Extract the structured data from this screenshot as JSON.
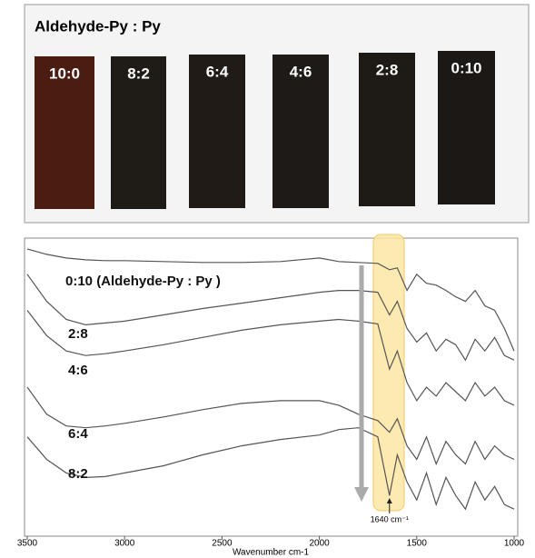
{
  "panel": {
    "title": "Aldehyde-Py : Py",
    "swatches": [
      {
        "label": "10:0",
        "color": "#4b1d12"
      },
      {
        "label": "8:2",
        "color": "#1f1b17"
      },
      {
        "label": "6:4",
        "color": "#201b16"
      },
      {
        "label": "4:6",
        "color": "#1d1a17"
      },
      {
        "label": "2:8",
        "color": "#1e1a15"
      },
      {
        "label": "0:10",
        "color": "#1b1815"
      }
    ]
  },
  "chart_data": {
    "type": "line",
    "x": [
      3500,
      3400,
      3300,
      3200,
      3100,
      3000,
      2800,
      2600,
      2400,
      2200,
      2000,
      1900,
      1800,
      1700,
      1640,
      1600,
      1550,
      1500,
      1450,
      1400,
      1350,
      1300,
      1250,
      1200,
      1150,
      1100,
      1050,
      1000
    ],
    "series": [
      {
        "name": "0:10 (Aldehyde-Py : Py )",
        "color": "#555555",
        "values": [
          318,
          312,
          308,
          306,
          305,
          305,
          304,
          303,
          303,
          304,
          308,
          304,
          303,
          302,
          295,
          297,
          272,
          290,
          280,
          278,
          272,
          265,
          260,
          272,
          255,
          250,
          230,
          205
        ]
      },
      {
        "name": "2:8",
        "color": "#555555",
        "values": [
          290,
          260,
          240,
          234,
          236,
          238,
          245,
          252,
          258,
          264,
          270,
          272,
          272,
          270,
          245,
          260,
          230,
          215,
          225,
          205,
          218,
          212,
          195,
          218,
          205,
          220,
          200,
          195
        ]
      },
      {
        "name": "4:6",
        "color": "#555555",
        "values": [
          250,
          222,
          205,
          200,
          202,
          205,
          212,
          220,
          228,
          234,
          238,
          240,
          238,
          235,
          185,
          205,
          170,
          150,
          165,
          155,
          170,
          160,
          150,
          170,
          155,
          165,
          150,
          145
        ]
      },
      {
        "name": "6:4",
        "color": "#555555",
        "values": [
          165,
          135,
          122,
          120,
          122,
          125,
          132,
          140,
          147,
          150,
          150,
          145,
          135,
          128,
          115,
          130,
          100,
          85,
          110,
          80,
          105,
          90,
          80,
          105,
          85,
          100,
          90,
          85
        ]
      },
      {
        "name": "8:2",
        "color": "#555555",
        "values": [
          110,
          85,
          70,
          65,
          66,
          70,
          78,
          90,
          100,
          107,
          112,
          118,
          120,
          110,
          45,
          90,
          60,
          40,
          70,
          35,
          65,
          45,
          30,
          60,
          40,
          55,
          35,
          30
        ]
      }
    ],
    "xlim": [
      3500,
      1000
    ],
    "ylim": [
      0,
      330
    ],
    "xticks": [
      3500,
      3000,
      2500,
      2000,
      1500,
      1000
    ],
    "xlabel": "Wavenumber cm-1",
    "annotation": {
      "x": 1640,
      "label": "1640 cm⁻¹"
    }
  }
}
